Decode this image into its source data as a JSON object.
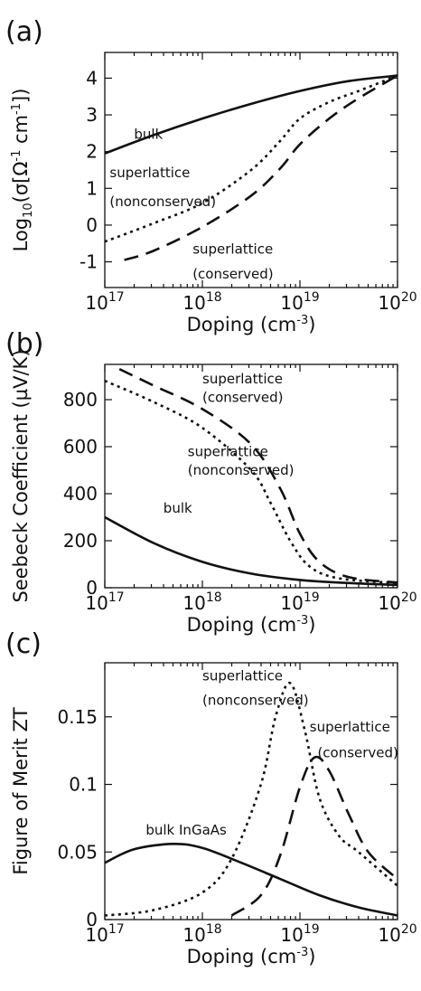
{
  "chart_data": [
    {
      "type": "line",
      "panel": "(a)",
      "ylabel": {
        "base": "Log",
        "sub": "10",
        "a": "(σ[Ω",
        "sup1": "-1",
        "b": " cm",
        "sup2": "-1",
        "c": "])"
      },
      "xlabel": {
        "base": "Doping (cm",
        "sup": "-3",
        "end": ")"
      },
      "xscale": "log",
      "xlim": [
        1e+17,
        1e+20
      ],
      "ylim": [
        -1.7,
        4.7
      ],
      "xticks": [
        17,
        18,
        19,
        20
      ],
      "xtick_base": "10",
      "yticks": [
        -1,
        0,
        1,
        2,
        3,
        4
      ],
      "ytick_labels": [
        "-1",
        "0",
        "1",
        "2",
        "3",
        "4"
      ],
      "series": [
        {
          "name": "bulk",
          "style": "solid",
          "logx": [
            17.0,
            17.5,
            18.0,
            18.5,
            19.0,
            19.5,
            20.0
          ],
          "y": [
            1.95,
            2.45,
            2.9,
            3.3,
            3.65,
            3.92,
            4.07
          ]
        },
        {
          "name": "superlattice (nonconserved)",
          "style": "dotted",
          "logx": [
            17.0,
            17.5,
            18.0,
            18.5,
            18.8,
            19.0,
            19.3,
            19.6,
            20.0
          ],
          "y": [
            -0.45,
            0.05,
            0.6,
            1.5,
            2.3,
            2.9,
            3.35,
            3.65,
            4.07
          ]
        },
        {
          "name": "superlattice (conserved)",
          "style": "dashed",
          "logx": [
            17.2,
            17.5,
            18.0,
            18.5,
            18.8,
            19.0,
            19.3,
            19.6,
            20.0
          ],
          "y": [
            -0.95,
            -0.7,
            -0.05,
            0.8,
            1.55,
            2.2,
            2.9,
            3.45,
            4.07
          ]
        }
      ],
      "annotations": [
        {
          "text": "bulk",
          "logx": 17.3,
          "y": 2.35
        },
        {
          "text": "superlattice",
          "logx": 17.05,
          "y": 1.3
        },
        {
          "text": "(nonconserved)",
          "logx": 17.05,
          "y": 0.52
        },
        {
          "text": "superlattice",
          "logx": 17.9,
          "y": -0.78
        },
        {
          "text": "(conserved)",
          "logx": 17.9,
          "y": -1.45
        }
      ]
    },
    {
      "type": "line",
      "panel": "(b)",
      "ylabel": {
        "text": "Seebeck Coefficient (µV/K)"
      },
      "xlabel": {
        "base": "Doping (cm",
        "sup": "-3",
        "end": ")"
      },
      "xscale": "log",
      "xlim": [
        1e+17,
        1e+20
      ],
      "ylim": [
        0,
        950
      ],
      "xticks": [
        17,
        18,
        19,
        20
      ],
      "xtick_base": "10",
      "yticks": [
        0,
        200,
        400,
        600,
        800
      ],
      "ytick_labels": [
        "0",
        "200",
        "400",
        "600",
        "800"
      ],
      "series": [
        {
          "name": "superlattice (conserved)",
          "style": "dashed",
          "logx": [
            17.15,
            17.5,
            18.0,
            18.5,
            18.8,
            19.0,
            19.2,
            19.5,
            20.0
          ],
          "y": [
            930,
            860,
            760,
            610,
            420,
            230,
            110,
            45,
            22
          ]
        },
        {
          "name": "superlattice (nonconserved)",
          "style": "dotted",
          "logx": [
            17.0,
            17.5,
            18.0,
            18.5,
            18.7,
            18.9,
            19.1,
            19.4,
            20.0
          ],
          "y": [
            880,
            790,
            680,
            500,
            360,
            200,
            90,
            40,
            20
          ]
        },
        {
          "name": "bulk",
          "style": "solid",
          "logx": [
            17.0,
            17.5,
            18.0,
            18.5,
            19.0,
            19.5,
            20.0
          ],
          "y": [
            300,
            190,
            110,
            60,
            33,
            20,
            12
          ]
        }
      ],
      "annotations": [
        {
          "text": "superlattice",
          "logx": 18.0,
          "y": 870
        },
        {
          "text": "(conserved)",
          "logx": 18.0,
          "y": 790
        },
        {
          "text": "superlattice",
          "logx": 17.85,
          "y": 560
        },
        {
          "text": "(nonconserved)",
          "logx": 17.85,
          "y": 480
        },
        {
          "text": "bulk",
          "logx": 17.6,
          "y": 320
        }
      ]
    },
    {
      "type": "line",
      "panel": "(c)",
      "ylabel": {
        "text": "Figure of Merit ZT"
      },
      "xlabel": {
        "base": "Doping (cm",
        "sup": "-3",
        "end": ")"
      },
      "xscale": "log",
      "xlim": [
        1e+17,
        1e+20
      ],
      "ylim": [
        0,
        0.19
      ],
      "xticks": [
        17,
        18,
        19,
        20
      ],
      "xtick_base": "10",
      "yticks": [
        0,
        0.05,
        0.1,
        0.15
      ],
      "ytick_labels": [
        "0",
        "0.05",
        "0.1",
        "0.15"
      ],
      "series": [
        {
          "name": "bulk InGaAs",
          "style": "solid",
          "logx": [
            17.0,
            17.3,
            17.7,
            18.0,
            18.4,
            18.8,
            19.2,
            19.6,
            20.0
          ],
          "y": [
            0.042,
            0.052,
            0.056,
            0.053,
            0.042,
            0.03,
            0.018,
            0.009,
            0.003
          ]
        },
        {
          "name": "superlattice (nonconserved)",
          "style": "dotted",
          "logx": [
            17.0,
            17.5,
            18.0,
            18.3,
            18.6,
            18.75,
            18.9,
            19.05,
            19.2,
            19.4,
            19.6,
            20.0
          ],
          "y": [
            0.003,
            0.007,
            0.02,
            0.045,
            0.1,
            0.15,
            0.175,
            0.14,
            0.09,
            0.062,
            0.05,
            0.025
          ]
        },
        {
          "name": "superlattice (conserved)",
          "style": "dashed",
          "logx": [
            18.3,
            18.6,
            18.8,
            19.0,
            19.15,
            19.3,
            19.5,
            19.7,
            20.0
          ],
          "y": [
            0.003,
            0.018,
            0.048,
            0.098,
            0.12,
            0.11,
            0.078,
            0.05,
            0.03
          ]
        }
      ],
      "annotations": [
        {
          "text": "superlattice",
          "logx": 18.0,
          "y": 0.177
        },
        {
          "text": "(nonconserved)",
          "logx": 18.0,
          "y": 0.159
        },
        {
          "text": "superlattice",
          "logx": 19.1,
          "y": 0.139
        },
        {
          "text": "(conserved)",
          "logx": 19.18,
          "y": 0.12
        },
        {
          "text": "bulk InGaAs",
          "logx": 17.42,
          "y": 0.063
        }
      ]
    }
  ]
}
